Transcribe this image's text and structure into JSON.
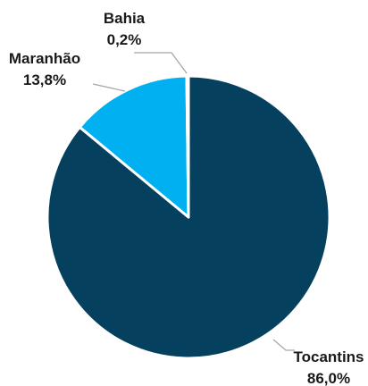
{
  "chart_data": {
    "type": "pie",
    "slices": [
      {
        "name": "Tocantins",
        "value": 86.0,
        "label": "86,0%",
        "color": "#05405E"
      },
      {
        "name": "Maranhão",
        "value": 13.8,
        "label": "13,8%",
        "color": "#00B0F0"
      },
      {
        "name": "Bahia",
        "value": 0.2,
        "label": "0,2%",
        "color": "#7F7F7F"
      }
    ],
    "title": "",
    "legend": "none",
    "start_angle": "12 o'clock",
    "direction": "clockwise"
  }
}
